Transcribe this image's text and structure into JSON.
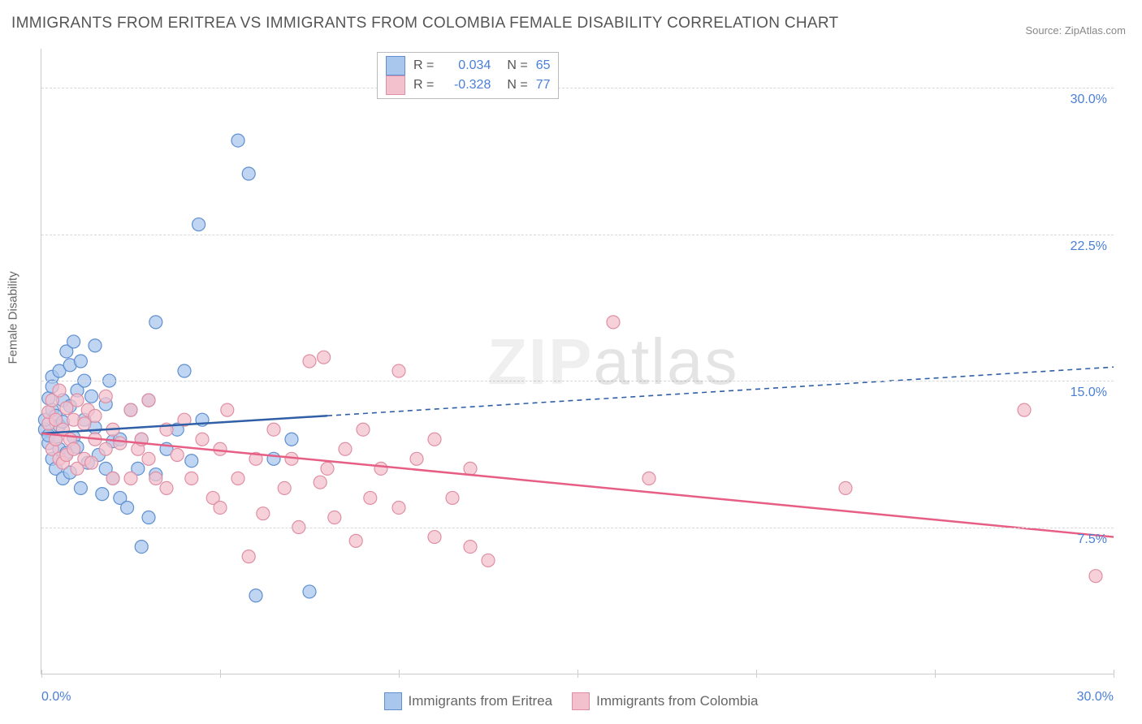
{
  "title": "IMMIGRANTS FROM ERITREA VS IMMIGRANTS FROM COLOMBIA FEMALE DISABILITY CORRELATION CHART",
  "source_prefix": "Source: ",
  "source_name": "ZipAtlas.com",
  "ylabel": "Female Disability",
  "watermark_a": "ZIP",
  "watermark_b": "atlas",
  "chart": {
    "type": "scatter",
    "xlim": [
      0,
      30
    ],
    "ylim": [
      0,
      32
    ],
    "grid_y": [
      7.5,
      15.0,
      22.5,
      30.0
    ],
    "grid_labels": [
      "7.5%",
      "15.0%",
      "22.5%",
      "30.0%"
    ],
    "ticks_x": [
      0,
      5,
      10,
      15,
      20,
      25,
      30
    ],
    "x_min_label": "0.0%",
    "x_max_label": "30.0%",
    "background_color": "#ffffff",
    "grid_color": "#d8d8d8",
    "axis_label_color": "#4a7fd8"
  },
  "series": [
    {
      "name": "Immigrants from Eritrea",
      "marker_fill": "#a9c7ec",
      "marker_stroke": "#5f8fd0",
      "line_color": "#2f5fa6",
      "R": "0.034",
      "N": "65",
      "trend": {
        "x0": 0,
        "y0": 12.3,
        "x1": 30,
        "y1": 15.7,
        "solid_until_x": 8
      },
      "points": [
        [
          0.1,
          12.5
        ],
        [
          0.1,
          13.0
        ],
        [
          0.2,
          11.8
        ],
        [
          0.2,
          14.1
        ],
        [
          0.2,
          12.2
        ],
        [
          0.3,
          13.5
        ],
        [
          0.3,
          11.0
        ],
        [
          0.3,
          15.2
        ],
        [
          0.3,
          14.7
        ],
        [
          0.4,
          10.5
        ],
        [
          0.4,
          12.0
        ],
        [
          0.4,
          13.2
        ],
        [
          0.5,
          15.5
        ],
        [
          0.5,
          11.5
        ],
        [
          0.5,
          12.7
        ],
        [
          0.6,
          14.0
        ],
        [
          0.6,
          10.0
        ],
        [
          0.6,
          12.9
        ],
        [
          0.7,
          16.5
        ],
        [
          0.7,
          11.3
        ],
        [
          0.8,
          15.8
        ],
        [
          0.8,
          13.7
        ],
        [
          0.8,
          10.3
        ],
        [
          0.9,
          17.0
        ],
        [
          0.9,
          12.1
        ],
        [
          1.0,
          14.5
        ],
        [
          1.0,
          11.6
        ],
        [
          1.1,
          16.0
        ],
        [
          1.1,
          9.5
        ],
        [
          1.2,
          13.0
        ],
        [
          1.2,
          15.0
        ],
        [
          1.3,
          10.8
        ],
        [
          1.4,
          14.2
        ],
        [
          1.5,
          12.6
        ],
        [
          1.5,
          16.8
        ],
        [
          1.6,
          11.2
        ],
        [
          1.7,
          9.2
        ],
        [
          1.8,
          13.8
        ],
        [
          1.8,
          10.5
        ],
        [
          1.9,
          15.0
        ],
        [
          2.0,
          11.9
        ],
        [
          2.0,
          10.0
        ],
        [
          2.2,
          9.0
        ],
        [
          2.2,
          12.0
        ],
        [
          2.4,
          8.5
        ],
        [
          2.5,
          13.5
        ],
        [
          2.7,
          10.5
        ],
        [
          2.8,
          6.5
        ],
        [
          2.8,
          12.0
        ],
        [
          3.0,
          14.0
        ],
        [
          3.0,
          8.0
        ],
        [
          3.2,
          10.2
        ],
        [
          3.2,
          18.0
        ],
        [
          3.5,
          11.5
        ],
        [
          3.8,
          12.5
        ],
        [
          4.0,
          15.5
        ],
        [
          4.2,
          10.9
        ],
        [
          4.4,
          23.0
        ],
        [
          4.5,
          13.0
        ],
        [
          5.5,
          27.3
        ],
        [
          5.8,
          25.6
        ],
        [
          6.0,
          4.0
        ],
        [
          6.5,
          11.0
        ],
        [
          7.0,
          12.0
        ],
        [
          7.5,
          4.2
        ]
      ]
    },
    {
      "name": "Immigrants from Colombia",
      "marker_fill": "#f3c1ce",
      "marker_stroke": "#df8fa4",
      "line_color": "#e75e85",
      "R": "-0.328",
      "N": "77",
      "trend": {
        "x0": 0,
        "y0": 12.3,
        "x1": 30,
        "y1": 7.0,
        "solid_until_x": 30
      },
      "points": [
        [
          0.2,
          12.8
        ],
        [
          0.2,
          13.4
        ],
        [
          0.3,
          11.5
        ],
        [
          0.3,
          14.0
        ],
        [
          0.4,
          12.0
        ],
        [
          0.4,
          13.0
        ],
        [
          0.5,
          11.0
        ],
        [
          0.5,
          14.5
        ],
        [
          0.6,
          12.5
        ],
        [
          0.6,
          10.8
        ],
        [
          0.7,
          13.6
        ],
        [
          0.7,
          11.2
        ],
        [
          0.8,
          12.0
        ],
        [
          0.9,
          13.0
        ],
        [
          0.9,
          11.5
        ],
        [
          1.0,
          14.0
        ],
        [
          1.0,
          10.5
        ],
        [
          1.2,
          12.8
        ],
        [
          1.2,
          11.0
        ],
        [
          1.3,
          13.5
        ],
        [
          1.4,
          10.8
        ],
        [
          1.5,
          12.0
        ],
        [
          1.5,
          13.2
        ],
        [
          1.8,
          14.2
        ],
        [
          1.8,
          11.5
        ],
        [
          2.0,
          10.0
        ],
        [
          2.0,
          12.5
        ],
        [
          2.2,
          11.8
        ],
        [
          2.5,
          13.5
        ],
        [
          2.5,
          10.0
        ],
        [
          2.7,
          11.5
        ],
        [
          2.8,
          12.0
        ],
        [
          3.0,
          14.0
        ],
        [
          3.0,
          11.0
        ],
        [
          3.2,
          10.0
        ],
        [
          3.5,
          12.5
        ],
        [
          3.5,
          9.5
        ],
        [
          3.8,
          11.2
        ],
        [
          4.0,
          13.0
        ],
        [
          4.2,
          10.0
        ],
        [
          4.5,
          12.0
        ],
        [
          4.8,
          9.0
        ],
        [
          5.0,
          11.5
        ],
        [
          5.0,
          8.5
        ],
        [
          5.2,
          13.5
        ],
        [
          5.5,
          10.0
        ],
        [
          5.8,
          6.0
        ],
        [
          6.0,
          11.0
        ],
        [
          6.2,
          8.2
        ],
        [
          6.5,
          12.5
        ],
        [
          6.8,
          9.5
        ],
        [
          7.0,
          11.0
        ],
        [
          7.2,
          7.5
        ],
        [
          7.5,
          16.0
        ],
        [
          7.8,
          9.8
        ],
        [
          7.9,
          16.2
        ],
        [
          8.0,
          10.5
        ],
        [
          8.2,
          8.0
        ],
        [
          8.5,
          11.5
        ],
        [
          8.8,
          6.8
        ],
        [
          9.0,
          12.5
        ],
        [
          9.2,
          9.0
        ],
        [
          9.5,
          10.5
        ],
        [
          10.0,
          15.5
        ],
        [
          10.0,
          8.5
        ],
        [
          10.5,
          11.0
        ],
        [
          11.0,
          12.0
        ],
        [
          11.0,
          7.0
        ],
        [
          11.5,
          9.0
        ],
        [
          12.0,
          10.5
        ],
        [
          12.0,
          6.5
        ],
        [
          12.5,
          5.8
        ],
        [
          16.0,
          18.0
        ],
        [
          17.0,
          10.0
        ],
        [
          22.5,
          9.5
        ],
        [
          27.5,
          13.5
        ],
        [
          29.5,
          5.0
        ]
      ]
    }
  ],
  "legend_top": {
    "r_label": "R =",
    "n_label": "N ="
  }
}
